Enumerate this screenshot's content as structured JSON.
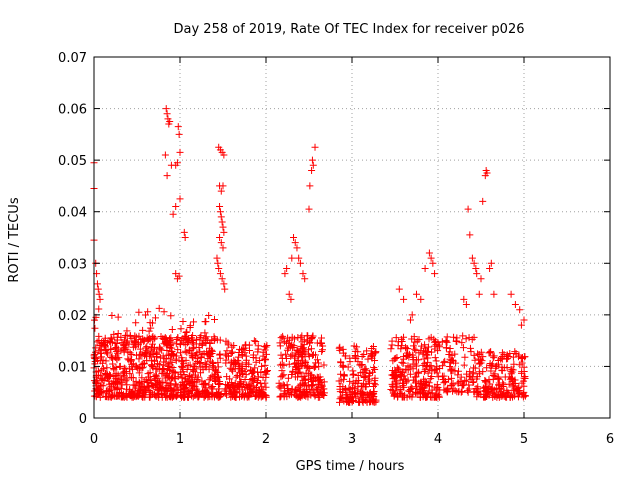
{
  "chart_data": {
    "type": "scatter",
    "title": "Day 258 of 2019, Rate Of TEC Index for receiver p026",
    "xlabel": "GPS time / hours",
    "ylabel": "ROTI / TECUs",
    "xlim": [
      0,
      6
    ],
    "ylim": [
      0,
      0.07
    ],
    "xticks": [
      0,
      1,
      2,
      3,
      4,
      5,
      6
    ],
    "yticks": [
      0,
      0.01,
      0.02,
      0.03,
      0.04,
      0.05,
      0.06,
      0.07
    ],
    "xtick_labels": [
      "0",
      "1",
      "2",
      "3",
      "4",
      "5",
      "6"
    ],
    "ytick_labels": [
      "0",
      "0.01",
      "0.02",
      "0.03",
      "0.04",
      "0.05",
      "0.06",
      "0.07"
    ],
    "grid": true,
    "marker": "+",
    "color": "#ff0000",
    "clusters": [
      {
        "x_range": [
          0.0,
          0.98
        ],
        "y_range": [
          0.004,
          0.016
        ],
        "count": 520
      },
      {
        "x_range": [
          0.0,
          0.98
        ],
        "y_range": [
          0.012,
          0.022
        ],
        "count": 70
      },
      {
        "x_range": [
          1.0,
          1.48
        ],
        "y_range": [
          0.004,
          0.016
        ],
        "count": 240
      },
      {
        "x_range": [
          1.0,
          1.48
        ],
        "y_range": [
          0.012,
          0.02
        ],
        "count": 40
      },
      {
        "x_range": [
          1.52,
          2.02
        ],
        "y_range": [
          0.004,
          0.015
        ],
        "count": 220
      },
      {
        "x_range": [
          2.15,
          2.68
        ],
        "y_range": [
          0.004,
          0.016
        ],
        "count": 250
      },
      {
        "x_range": [
          2.85,
          3.28
        ],
        "y_range": [
          0.003,
          0.014
        ],
        "count": 180
      },
      {
        "x_range": [
          3.45,
          4.02
        ],
        "y_range": [
          0.004,
          0.016
        ],
        "count": 250
      },
      {
        "x_range": [
          4.05,
          4.42
        ],
        "y_range": [
          0.005,
          0.016
        ],
        "count": 100
      },
      {
        "x_range": [
          4.42,
          5.02
        ],
        "y_range": [
          0.004,
          0.013
        ],
        "count": 200
      }
    ],
    "points": [
      [
        0.0,
        0.0445
      ],
      [
        0.0,
        0.0495
      ],
      [
        0.0,
        0.0345
      ],
      [
        0.02,
        0.03
      ],
      [
        0.03,
        0.028
      ],
      [
        0.04,
        0.026
      ],
      [
        0.05,
        0.025
      ],
      [
        0.06,
        0.024
      ],
      [
        0.07,
        0.023
      ],
      [
        0.84,
        0.06
      ],
      [
        0.85,
        0.059
      ],
      [
        0.86,
        0.058
      ],
      [
        0.87,
        0.057
      ],
      [
        0.88,
        0.0575
      ],
      [
        0.83,
        0.051
      ],
      [
        0.85,
        0.047
      ],
      [
        0.9,
        0.049
      ],
      [
        0.95,
        0.049
      ],
      [
        0.98,
        0.0565
      ],
      [
        0.99,
        0.055
      ],
      [
        1.0,
        0.0515
      ],
      [
        0.97,
        0.0495
      ],
      [
        0.92,
        0.0395
      ],
      [
        0.95,
        0.041
      ],
      [
        1.0,
        0.0425
      ],
      [
        1.05,
        0.036
      ],
      [
        1.06,
        0.035
      ],
      [
        0.95,
        0.028
      ],
      [
        0.97,
        0.027
      ],
      [
        0.99,
        0.0275
      ],
      [
        1.45,
        0.0525
      ],
      [
        1.47,
        0.052
      ],
      [
        1.49,
        0.0515
      ],
      [
        1.51,
        0.051
      ],
      [
        1.46,
        0.045
      ],
      [
        1.48,
        0.044
      ],
      [
        1.5,
        0.045
      ],
      [
        1.46,
        0.041
      ],
      [
        1.47,
        0.04
      ],
      [
        1.48,
        0.039
      ],
      [
        1.49,
        0.038
      ],
      [
        1.5,
        0.037
      ],
      [
        1.51,
        0.036
      ],
      [
        1.46,
        0.035
      ],
      [
        1.48,
        0.034
      ],
      [
        1.5,
        0.033
      ],
      [
        1.43,
        0.031
      ],
      [
        1.44,
        0.03
      ],
      [
        1.45,
        0.029
      ],
      [
        1.47,
        0.028
      ],
      [
        1.49,
        0.027
      ],
      [
        1.51,
        0.026
      ],
      [
        1.52,
        0.025
      ],
      [
        2.22,
        0.028
      ],
      [
        2.24,
        0.029
      ],
      [
        2.3,
        0.031
      ],
      [
        2.32,
        0.035
      ],
      [
        2.34,
        0.034
      ],
      [
        2.36,
        0.033
      ],
      [
        2.38,
        0.031
      ],
      [
        2.4,
        0.03
      ],
      [
        2.43,
        0.028
      ],
      [
        2.45,
        0.027
      ],
      [
        2.5,
        0.0405
      ],
      [
        2.51,
        0.045
      ],
      [
        2.53,
        0.048
      ],
      [
        2.54,
        0.05
      ],
      [
        2.55,
        0.049
      ],
      [
        2.57,
        0.0525
      ],
      [
        2.27,
        0.024
      ],
      [
        2.29,
        0.023
      ],
      [
        3.55,
        0.025
      ],
      [
        3.6,
        0.023
      ],
      [
        3.75,
        0.024
      ],
      [
        3.8,
        0.023
      ],
      [
        3.85,
        0.029
      ],
      [
        3.9,
        0.032
      ],
      [
        3.92,
        0.031
      ],
      [
        3.94,
        0.03
      ],
      [
        3.96,
        0.028
      ],
      [
        3.7,
        0.02
      ],
      [
        3.68,
        0.019
      ],
      [
        4.35,
        0.0405
      ],
      [
        4.37,
        0.0355
      ],
      [
        4.4,
        0.031
      ],
      [
        4.42,
        0.03
      ],
      [
        4.44,
        0.029
      ],
      [
        4.45,
        0.028
      ],
      [
        4.5,
        0.027
      ],
      [
        4.52,
        0.042
      ],
      [
        4.55,
        0.047
      ],
      [
        4.56,
        0.048
      ],
      [
        4.57,
        0.0475
      ],
      [
        4.6,
        0.029
      ],
      [
        4.62,
        0.03
      ],
      [
        4.65,
        0.024
      ],
      [
        4.3,
        0.023
      ],
      [
        4.33,
        0.022
      ],
      [
        4.48,
        0.024
      ],
      [
        4.85,
        0.024
      ],
      [
        4.9,
        0.022
      ],
      [
        4.95,
        0.021
      ],
      [
        5.0,
        0.019
      ],
      [
        4.97,
        0.018
      ]
    ]
  }
}
